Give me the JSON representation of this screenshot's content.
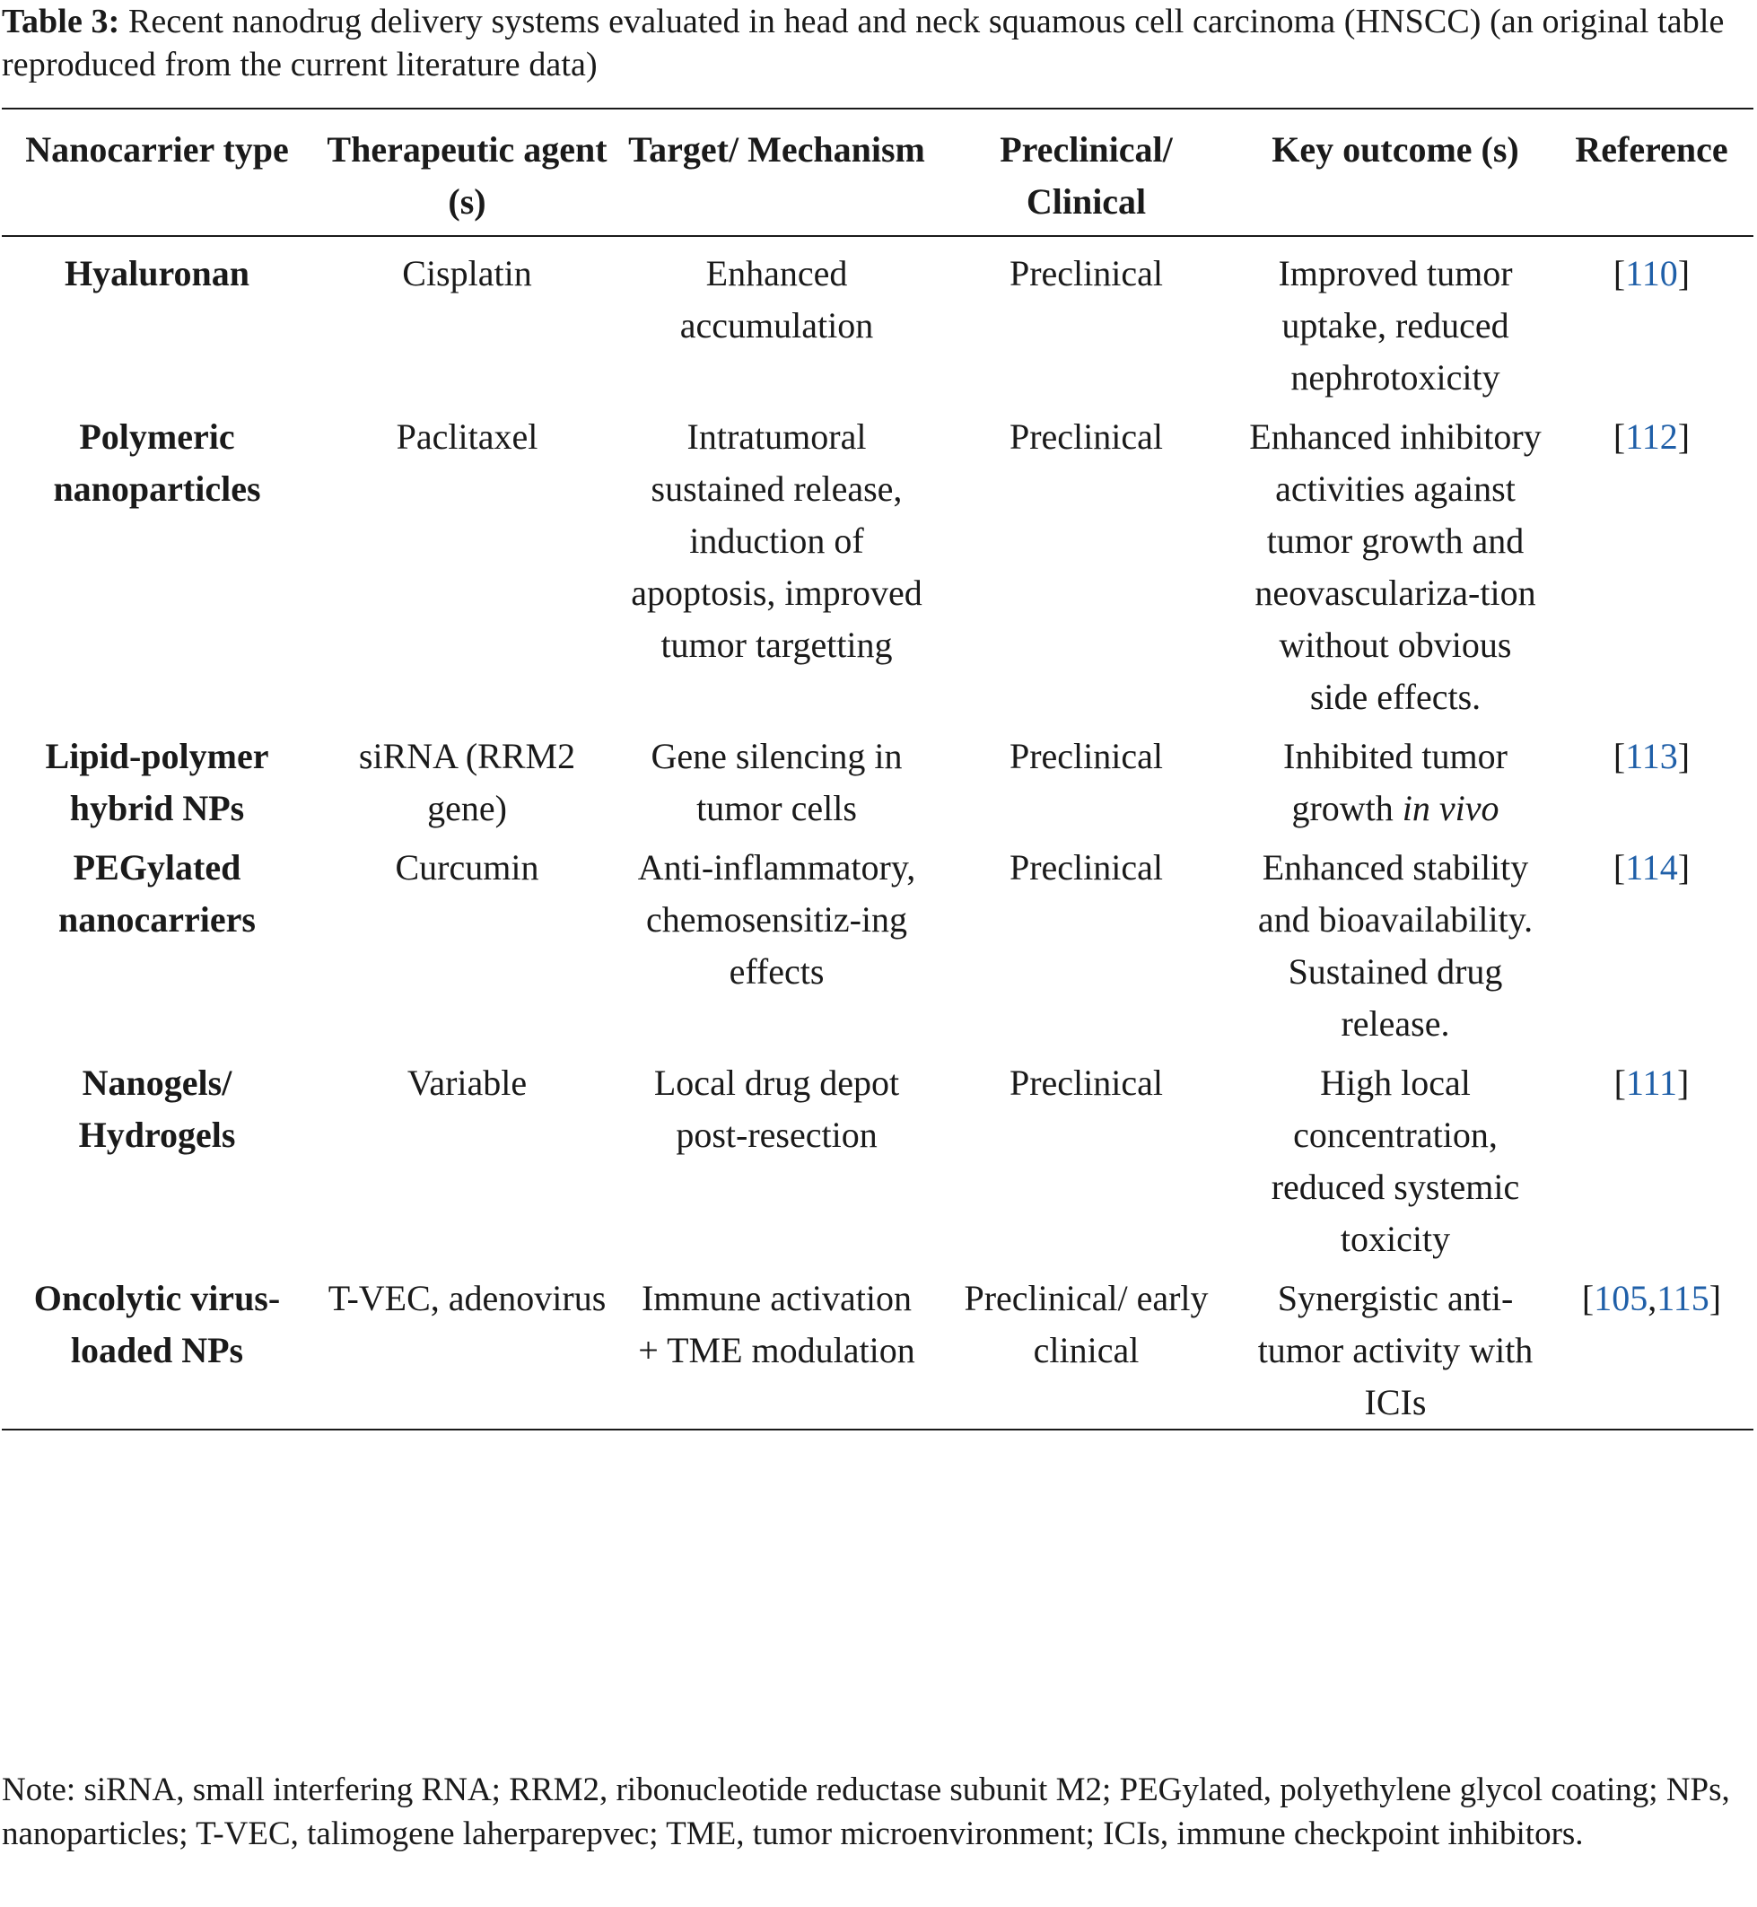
{
  "caption": {
    "label": "Table 3:",
    "text": " Recent nanodrug delivery systems evaluated in head and neck squamous cell carcinoma (HNSCC) (an original table reproduced from the current literature data)"
  },
  "headers": [
    "Nanocarrier type",
    "Therapeutic agent (s)",
    "Target/ Mechanism",
    "Preclinical/ Clinical",
    "Key outcome (s)",
    "Reference"
  ],
  "rows": [
    {
      "type": "Hyaluronan",
      "agent": "Cisplatin",
      "mechanism": "Enhanced accumulation",
      "stage": "Preclinical",
      "outcome": "Improved tumor uptake, reduced nephrotoxicity",
      "ref_open": "[",
      "ref1": "110",
      "ref_sep": "",
      "ref2": "",
      "ref_close": "]"
    },
    {
      "type": "Polymeric nanoparticles",
      "agent": "Paclitaxel",
      "mechanism": "Intratumoral sustained release, induction of apoptosis, improved tumor targetting",
      "stage": "Preclinical",
      "outcome": "Enhanced inhibitory activities against tumor growth and neovasculariza-tion without obvious side effects.",
      "ref_open": "[",
      "ref1": "112",
      "ref_sep": "",
      "ref2": "",
      "ref_close": "]"
    },
    {
      "type": "Lipid-polymer hybrid NPs",
      "agent": "siRNA (RRM2 gene)",
      "mechanism": "Gene silencing in tumor cells",
      "stage": "Preclinical",
      "outcome": "Inhibited tumor growth ",
      "outcome_italic": "in vivo",
      "ref_open": "[",
      "ref1": "113",
      "ref_sep": "",
      "ref2": "",
      "ref_close": "]"
    },
    {
      "type": "PEGylated nanocarriers",
      "agent": "Curcumin",
      "mechanism": "Anti-inflammatory, chemosensitiz-ing effects",
      "stage": "Preclinical",
      "outcome": "Enhanced stability and bioavailability. Sustained drug release.",
      "ref_open": "[",
      "ref1": "114",
      "ref_sep": "",
      "ref2": "",
      "ref_close": "]"
    },
    {
      "type": "Nanogels/ Hydrogels",
      "agent": "Variable",
      "mechanism": "Local drug depot post-resection",
      "stage": "Preclinical",
      "outcome": "High local concentration, reduced systemic toxicity",
      "ref_open": "[",
      "ref1": "111",
      "ref_sep": "",
      "ref2": "",
      "ref_close": "]"
    },
    {
      "type": "Oncolytic virus-loaded NPs",
      "agent": "T-VEC, adenovirus",
      "mechanism": "Immune activation + TME modulation",
      "stage": "Preclinical/ early clinical",
      "outcome": "Synergistic anti-tumor activity with ICIs",
      "ref_open": "[",
      "ref1": "105",
      "ref_sep": ",",
      "ref2": "115",
      "ref_close": "]"
    }
  ],
  "note": "Note: siRNA, small interfering RNA; RRM2, ribonucleotide reductase subunit M2; PEGylated, polyethylene glycol coating; NPs, nanoparticles; T-VEC, talimogene laherparepvec; TME, tumor microenvironment; ICIs, immune checkpoint inhibitors.",
  "colors": {
    "link": "#1f5fa8",
    "text": "#1a1a1a"
  }
}
